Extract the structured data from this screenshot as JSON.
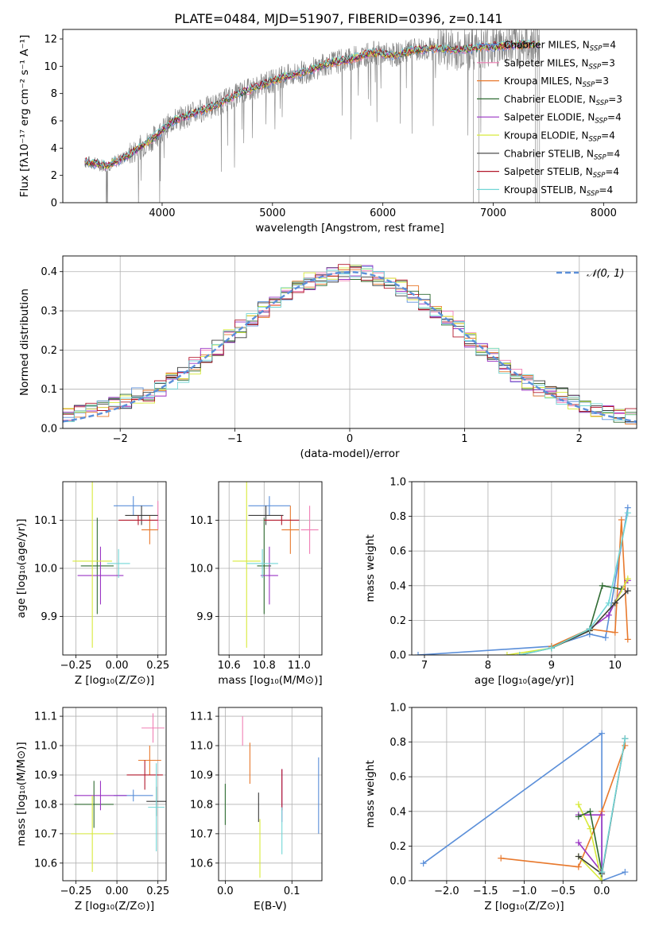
{
  "figure_title": "PLATE=0484, MJD=51907, FIBERID=0396, z=0.141",
  "colors": {
    "Chabrier MILES": "#5b8fd9",
    "Salpeter MILES": "#f07fb5",
    "Kroupa MILES": "#e8792d",
    "Chabrier ELODIE": "#2f6b32",
    "Salpeter ELODIE": "#9a34c4",
    "Kroupa ELODIE": "#d8ea3a",
    "Chabrier STELIB": "#3a3a3a",
    "Salpeter STELIB": "#b2182b",
    "Kroupa STELIB": "#72d6d6",
    "spectrum": "#808080",
    "gaussian": "#5b8fd9"
  },
  "chart_data": [
    {
      "id": "spectrum",
      "type": "line",
      "xlabel": "wavelength [Angstrom, rest frame]",
      "ylabel": "Flux [fλ10⁻¹⁷ erg cm⁻² s⁻¹ A⁻¹]",
      "xlim": [
        3100,
        8300
      ],
      "ylim": [
        0,
        12.7
      ],
      "xticks": [
        4000,
        5000,
        6000,
        7000,
        8000
      ],
      "yticks": [
        0,
        2,
        4,
        6,
        8,
        10,
        12
      ],
      "grid": false,
      "legend_position": "upper-right",
      "legend": [
        {
          "name": "Chabrier MILES",
          "nssp": "4"
        },
        {
          "name": "Salpeter MILES",
          "nssp": "3"
        },
        {
          "name": "Kroupa MILES",
          "nssp": "3"
        },
        {
          "name": "Chabrier ELODIE",
          "nssp": "3"
        },
        {
          "name": "Salpeter ELODIE",
          "nssp": "4"
        },
        {
          "name": "Kroupa ELODIE",
          "nssp": "4"
        },
        {
          "name": "Chabrier STELIB",
          "nssp": "4"
        },
        {
          "name": "Salpeter STELIB",
          "nssp": "4"
        },
        {
          "name": "Kroupa STELIB",
          "nssp": "4"
        }
      ],
      "continuum": {
        "x": [
          3300,
          3500,
          3700,
          3900,
          4100,
          4300,
          4500,
          4700,
          4900,
          5100,
          5300,
          5500,
          5700,
          5900,
          6100,
          6300,
          6500,
          6700,
          6900,
          7100,
          7300,
          7420
        ],
        "y": [
          3.0,
          2.7,
          3.5,
          4.6,
          6.0,
          6.6,
          7.2,
          8.0,
          8.6,
          9.2,
          9.6,
          10.2,
          10.5,
          11.0,
          10.8,
          11.2,
          11.3,
          11.2,
          11.4,
          11.5,
          11.6,
          11.6
        ]
      }
    },
    {
      "id": "residuals",
      "type": "line",
      "xlabel": "(data-model)/error",
      "ylabel": "Normed distribution",
      "xlim": [
        -2.5,
        2.5
      ],
      "ylim": [
        0,
        0.44
      ],
      "xticks": [
        -2,
        -1,
        0,
        1,
        2
      ],
      "yticks": [
        0.0,
        0.1,
        0.2,
        0.3,
        0.4
      ],
      "grid": true,
      "legend_position": "upper-right",
      "legend": [
        "𝒩(0, 1)"
      ],
      "bin_width": 0.1
    },
    {
      "id": "age-vs-Z",
      "type": "scatter",
      "xlabel": "Z [log₁₀(Z/Z⊙)]",
      "ylabel": "age  [log₁₀(age/yr)]",
      "xlim": [
        -0.33,
        0.3
      ],
      "ylim": [
        9.82,
        10.18
      ],
      "xticks": [
        -0.25,
        0.0,
        0.25
      ],
      "yticks": [
        9.9,
        10.0,
        10.1
      ],
      "grid": true,
      "points": [
        {
          "model": "Chabrier MILES",
          "x": 0.1,
          "y": 10.13,
          "xerr": 0.12,
          "yerr": 0.02
        },
        {
          "model": "Salpeter MILES",
          "x": 0.25,
          "y": 10.11,
          "xerr": 0.0,
          "yerr": 0.03
        },
        {
          "model": "Kroupa MILES",
          "x": 0.2,
          "y": 10.08,
          "xerr": 0.05,
          "yerr": 0.03
        },
        {
          "model": "Chabrier ELODIE",
          "x": -0.12,
          "y": 10.005,
          "xerr": 0.1,
          "yerr": 0.1
        },
        {
          "model": "Salpeter ELODIE",
          "x": -0.1,
          "y": 9.985,
          "xerr": 0.14,
          "yerr": 0.06
        },
        {
          "model": "Kroupa ELODIE",
          "x": -0.15,
          "y": 10.015,
          "xerr": 0.12,
          "yerr": 0.18
        },
        {
          "model": "Chabrier STELIB",
          "x": 0.15,
          "y": 10.11,
          "xerr": 0.1,
          "yerr": 0.02
        },
        {
          "model": "Salpeter STELIB",
          "x": 0.13,
          "y": 10.1,
          "xerr": 0.12,
          "yerr": 0.01
        },
        {
          "model": "Kroupa STELIB",
          "x": 0.01,
          "y": 10.01,
          "xerr": 0.07,
          "yerr": 0.03
        }
      ]
    },
    {
      "id": "age-vs-mass",
      "type": "scatter",
      "xlabel": "mass [log₁₀(M/M⊙)]",
      "ylabel": "",
      "xlim": [
        10.54,
        11.13
      ],
      "ylim": [
        9.82,
        10.18
      ],
      "xticks": [
        10.6,
        10.8,
        11.0
      ],
      "yticks": [
        9.9,
        10.0,
        10.1
      ],
      "grid": true,
      "points": [
        {
          "model": "Chabrier MILES",
          "x": 10.83,
          "y": 10.13,
          "xerr": 0.12,
          "yerr": 0.02
        },
        {
          "model": "Salpeter MILES",
          "x": 11.06,
          "y": 10.08,
          "xerr": 0.05,
          "yerr": 0.05
        },
        {
          "model": "Kroupa MILES",
          "x": 10.95,
          "y": 10.08,
          "xerr": 0.05,
          "yerr": 0.05
        },
        {
          "model": "Chabrier ELODIE",
          "x": 10.8,
          "y": 10.005,
          "xerr": 0.04,
          "yerr": 0.1
        },
        {
          "model": "Salpeter ELODIE",
          "x": 10.83,
          "y": 9.985,
          "xerr": 0.05,
          "yerr": 0.06
        },
        {
          "model": "Kroupa ELODIE",
          "x": 10.7,
          "y": 10.015,
          "xerr": 0.08,
          "yerr": 0.18
        },
        {
          "model": "Chabrier STELIB",
          "x": 10.81,
          "y": 10.11,
          "xerr": 0.1,
          "yerr": 0.02
        },
        {
          "model": "Salpeter STELIB",
          "x": 10.9,
          "y": 10.1,
          "xerr": 0.1,
          "yerr": 0.01
        },
        {
          "model": "Kroupa STELIB",
          "x": 10.79,
          "y": 10.01,
          "xerr": 0.09,
          "yerr": 0.03
        }
      ]
    },
    {
      "id": "massweight-vs-age",
      "type": "line",
      "xlabel": "age  [log₁₀(age/yr)]",
      "ylabel": "mass weight",
      "xlim": [
        6.8,
        10.34
      ],
      "ylim": [
        0,
        1.0
      ],
      "xticks": [
        7,
        8,
        9,
        10
      ],
      "yticks": [
        0.0,
        0.2,
        0.4,
        0.6,
        0.8,
        1.0
      ],
      "grid": true,
      "series": [
        {
          "model": "Chabrier MILES",
          "x": [
            6.9,
            9.0,
            9.6,
            9.85,
            10.2
          ],
          "y": [
            0.0,
            0.05,
            0.12,
            0.1,
            0.85
          ]
        },
        {
          "model": "Kroupa MILES",
          "x": [
            9.0,
            9.6,
            10.0,
            10.1,
            10.2
          ],
          "y": [
            0.05,
            0.15,
            0.13,
            0.78,
            0.09
          ]
        },
        {
          "model": "Salpeter ELODIE",
          "x": [
            9.6,
            9.9,
            10.1,
            10.2
          ],
          "y": [
            0.15,
            0.23,
            0.38,
            0.43
          ]
        },
        {
          "model": "Chabrier ELODIE",
          "x": [
            8.5,
            9.0,
            9.6,
            9.8,
            10.1
          ],
          "y": [
            0.0,
            0.04,
            0.15,
            0.4,
            0.38
          ]
        },
        {
          "model": "Kroupa ELODIE",
          "x": [
            8.3,
            9.0,
            9.6,
            10.0,
            10.2
          ],
          "y": [
            0.0,
            0.04,
            0.14,
            0.3,
            0.44
          ]
        },
        {
          "model": "Chabrier STELIB",
          "x": [
            9.0,
            9.6,
            10.0,
            10.2
          ],
          "y": [
            0.04,
            0.14,
            0.3,
            0.37
          ]
        },
        {
          "model": "Kroupa STELIB",
          "x": [
            8.5,
            9.0,
            9.6,
            9.9,
            10.2
          ],
          "y": [
            0.0,
            0.04,
            0.15,
            0.3,
            0.82
          ]
        }
      ]
    },
    {
      "id": "mass-vs-Z",
      "type": "scatter",
      "xlabel": "Z [log₁₀(Z/Z⊙)]",
      "ylabel": "mass [log₁₀(M/M⊙)]",
      "xlim": [
        -0.33,
        0.3
      ],
      "ylim": [
        10.54,
        11.13
      ],
      "xticks": [
        -0.25,
        0.0,
        0.25
      ],
      "yticks": [
        10.6,
        10.7,
        10.8,
        10.9,
        11.0,
        11.1
      ],
      "grid": true,
      "points": [
        {
          "model": "Chabrier MILES",
          "x": 0.1,
          "y": 10.83,
          "xerr": 0.12,
          "yerr": 0.02
        },
        {
          "model": "Salpeter MILES",
          "x": 0.22,
          "y": 11.06,
          "xerr": 0.07,
          "yerr": 0.05
        },
        {
          "model": "Kroupa MILES",
          "x": 0.2,
          "y": 10.95,
          "xerr": 0.07,
          "yerr": 0.05
        },
        {
          "model": "Chabrier ELODIE",
          "x": -0.14,
          "y": 10.8,
          "xerr": 0.12,
          "yerr": 0.08
        },
        {
          "model": "Salpeter ELODIE",
          "x": -0.1,
          "y": 10.83,
          "xerr": 0.16,
          "yerr": 0.05
        },
        {
          "model": "Kroupa ELODIE",
          "x": -0.15,
          "y": 10.7,
          "xerr": 0.13,
          "yerr": 0.13
        },
        {
          "model": "Chabrier STELIB",
          "x": 0.24,
          "y": 10.81,
          "xerr": 0.06,
          "yerr": 0.05
        },
        {
          "model": "Salpeter STELIB",
          "x": 0.17,
          "y": 10.9,
          "xerr": 0.11,
          "yerr": 0.05
        },
        {
          "model": "Kroupa STELIB",
          "x": 0.24,
          "y": 10.79,
          "xerr": 0.05,
          "yerr": 0.15
        }
      ]
    },
    {
      "id": "mass-vs-ebv",
      "type": "scatter",
      "xlabel": "E(B-V)",
      "ylabel": "",
      "xlim": [
        -0.01,
        0.145
      ],
      "ylim": [
        10.54,
        11.13
      ],
      "xticks": [
        0.0,
        0.1
      ],
      "yticks": [
        10.6,
        10.7,
        10.8,
        10.9,
        11.0,
        11.1
      ],
      "grid": true,
      "points": [
        {
          "model": "Chabrier MILES",
          "x": 0.14,
          "y": 10.83,
          "yerr": 0.13
        },
        {
          "model": "Salpeter MILES",
          "x": 0.026,
          "y": 11.05,
          "yerr": 0.05
        },
        {
          "model": "Kroupa MILES",
          "x": 0.037,
          "y": 10.94,
          "yerr": 0.07
        },
        {
          "model": "Chabrier ELODIE",
          "x": 0.0,
          "y": 10.8,
          "yerr": 0.07
        },
        {
          "model": "Salpeter ELODIE",
          "x": 0.085,
          "y": 10.83,
          "yerr": 0.09
        },
        {
          "model": "Kroupa ELODIE",
          "x": 0.052,
          "y": 10.65,
          "yerr": 0.1
        },
        {
          "model": "Chabrier STELIB",
          "x": 0.05,
          "y": 10.79,
          "yerr": 0.05
        },
        {
          "model": "Salpeter STELIB",
          "x": 0.085,
          "y": 10.85,
          "yerr": 0.07
        },
        {
          "model": "Kroupa STELIB",
          "x": 0.085,
          "y": 10.71,
          "yerr": 0.08
        }
      ]
    },
    {
      "id": "massweight-vs-Z",
      "type": "line",
      "xlabel": "Z [log₁₀(Z/Z⊙)]",
      "ylabel": "mass weight",
      "xlim": [
        -2.45,
        0.45
      ],
      "ylim": [
        0,
        1.0
      ],
      "xticks": [
        -2.0,
        -1.5,
        -1.0,
        -0.5,
        0.0
      ],
      "yticks": [
        0.0,
        0.2,
        0.4,
        0.6,
        0.8,
        1.0
      ],
      "grid": true,
      "series": [
        {
          "model": "Chabrier MILES",
          "x": [
            -2.3,
            0.0,
            0.0,
            0.3
          ],
          "y": [
            0.1,
            0.85,
            0.0,
            0.05
          ]
        },
        {
          "model": "Kroupa MILES",
          "x": [
            -1.3,
            -0.3,
            0.0,
            0.3
          ],
          "y": [
            0.13,
            0.08,
            0.4,
            0.78
          ]
        },
        {
          "model": "Salpeter ELODIE",
          "x": [
            -0.3,
            0.0,
            0.0,
            -0.3
          ],
          "y": [
            0.38,
            0.38,
            0.05,
            0.22
          ]
        },
        {
          "model": "Kroupa ELODIE",
          "x": [
            -0.3,
            -0.15,
            0.0,
            -0.3
          ],
          "y": [
            0.44,
            0.3,
            0.0,
            0.14
          ]
        },
        {
          "model": "Chabrier ELODIE",
          "x": [
            -0.3,
            -0.15,
            0.0
          ],
          "y": [
            0.37,
            0.4,
            0.05
          ]
        },
        {
          "model": "Chabrier STELIB",
          "x": [
            -0.3,
            0.0,
            0.3
          ],
          "y": [
            0.14,
            0.04,
            0.82
          ]
        },
        {
          "model": "Kroupa STELIB",
          "x": [
            0.0,
            0.3
          ],
          "y": [
            0.05,
            0.82
          ]
        }
      ]
    }
  ]
}
